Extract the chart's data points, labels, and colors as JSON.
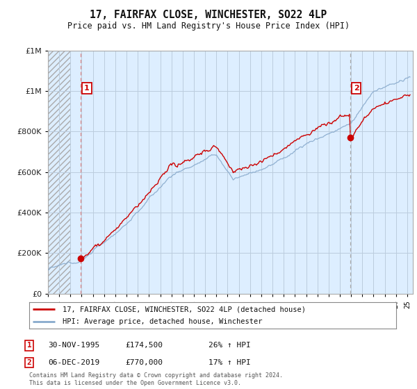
{
  "title": "17, FAIRFAX CLOSE, WINCHESTER, SO22 4LP",
  "subtitle": "Price paid vs. HM Land Registry's House Price Index (HPI)",
  "legend_line1": "17, FAIRFAX CLOSE, WINCHESTER, SO22 4LP (detached house)",
  "legend_line2": "HPI: Average price, detached house, Winchester",
  "annotation1_date": "30-NOV-1995",
  "annotation1_price": "£174,500",
  "annotation1_hpi": "26% ↑ HPI",
  "annotation2_date": "06-DEC-2019",
  "annotation2_price": "£770,000",
  "annotation2_hpi": "17% ↑ HPI",
  "footer": "Contains HM Land Registry data © Crown copyright and database right 2024.\nThis data is licensed under the Open Government Licence v3.0.",
  "price_color": "#cc0000",
  "hpi_color": "#88aacc",
  "vline_color": "#dd8888",
  "plot_bg_color": "#ddeeff",
  "hatch_color": "#bbbbbb",
  "grid_color": "#bbccdd",
  "ylim": [
    0,
    1200000
  ],
  "yticks": [
    0,
    200000,
    400000,
    600000,
    800000,
    1000000,
    1200000
  ],
  "xlim_start": 1993.0,
  "xlim_end": 2025.5,
  "purchase1_x": 1995.92,
  "purchase1_y": 174500,
  "purchase2_x": 2019.92,
  "purchase2_y": 770000,
  "hatch_end": 1995.0
}
